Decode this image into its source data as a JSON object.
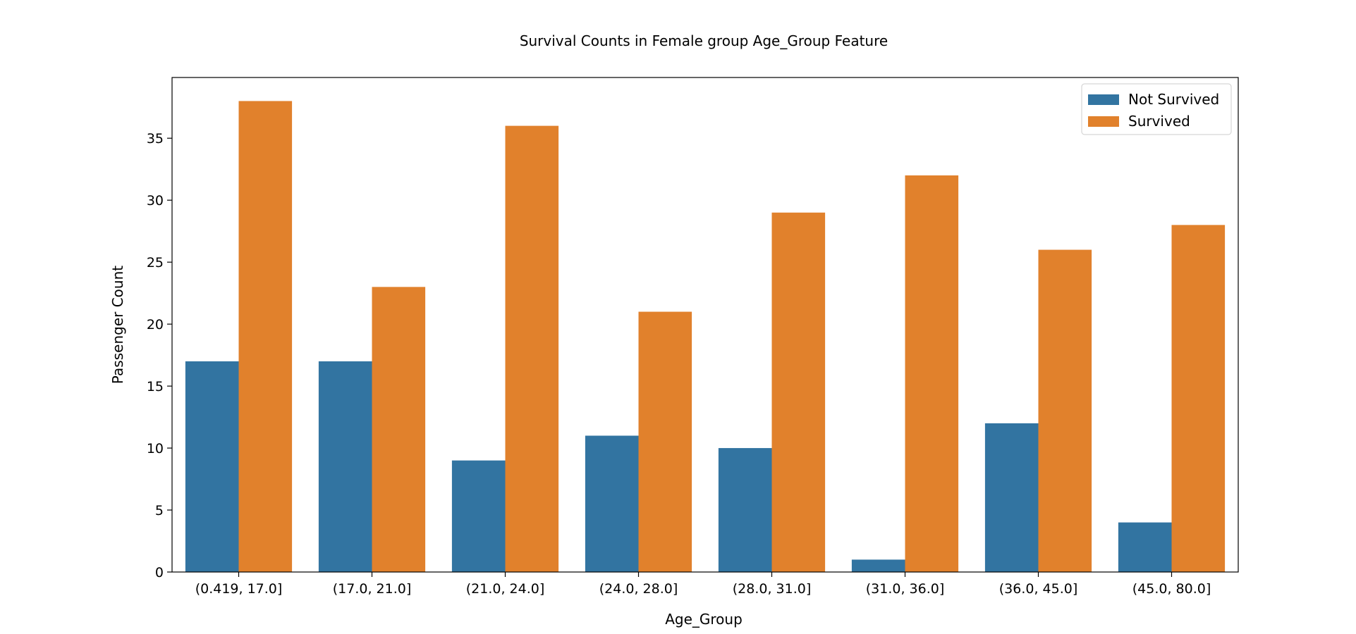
{
  "chart_data": {
    "type": "bar",
    "title": "Survival Counts in Female group Age_Group Feature",
    "xlabel": "Age_Group",
    "ylabel": "Passenger Count",
    "categories": [
      "(0.419, 17.0]",
      "(17.0, 21.0]",
      "(21.0, 24.0]",
      "(24.0, 28.0]",
      "(28.0, 31.0]",
      "(31.0, 36.0]",
      "(36.0, 45.0]",
      "(45.0, 80.0]"
    ],
    "series": [
      {
        "name": "Not Survived",
        "color": "#3274a1",
        "values": [
          17,
          17,
          9,
          11,
          10,
          1,
          12,
          4
        ]
      },
      {
        "name": "Survived",
        "color": "#e1812c",
        "values": [
          38,
          23,
          36,
          21,
          29,
          32,
          26,
          28
        ]
      }
    ],
    "ylim": [
      0,
      39.9
    ],
    "yticks": [
      0,
      5,
      10,
      15,
      20,
      25,
      30,
      35
    ],
    "legend_position": "top-right",
    "grid": false
  }
}
